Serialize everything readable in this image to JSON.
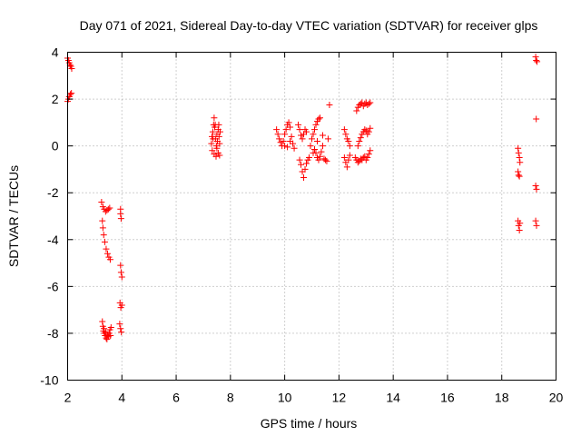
{
  "chart_data": {
    "type": "scatter",
    "title": "Day 071 of 2021, Sidereal Day-to-day VTEC variation (SDTVAR) for receiver glps",
    "xlabel": "GPS time / hours",
    "ylabel": "SDTVAR / TECUs",
    "xlim": [
      2,
      20
    ],
    "ylim": [
      -10,
      4
    ],
    "xticks": [
      2,
      4,
      6,
      8,
      10,
      12,
      14,
      16,
      18,
      20
    ],
    "yticks": [
      -10,
      -8,
      -6,
      -4,
      -2,
      0,
      2,
      4
    ],
    "xtick_labels": [
      "2",
      "4",
      "6",
      "8",
      "10",
      "12",
      "14",
      "16",
      "18",
      "20"
    ],
    "ytick_labels": [
      "-10",
      "-8",
      "-6",
      "-4",
      "-2",
      "0",
      "2",
      "4"
    ],
    "grid": true,
    "marker": "+",
    "marker_color": "#ff0000",
    "series": [
      {
        "name": "SDTVAR",
        "points": [
          [
            2.0,
            3.75
          ],
          [
            2.03,
            3.65
          ],
          [
            2.06,
            3.55
          ],
          [
            2.09,
            3.45
          ],
          [
            2.12,
            3.4
          ],
          [
            2.15,
            3.3
          ],
          [
            2.0,
            1.9
          ],
          [
            2.03,
            2.0
          ],
          [
            2.06,
            2.1
          ],
          [
            2.1,
            2.2
          ],
          [
            2.14,
            2.25
          ],
          [
            3.25,
            -2.4
          ],
          [
            3.3,
            -2.6
          ],
          [
            3.35,
            -2.7
          ],
          [
            3.4,
            -2.8
          ],
          [
            3.45,
            -2.75
          ],
          [
            3.5,
            -2.7
          ],
          [
            3.55,
            -2.65
          ],
          [
            3.28,
            -3.2
          ],
          [
            3.3,
            -3.5
          ],
          [
            3.33,
            -3.8
          ],
          [
            3.37,
            -4.1
          ],
          [
            3.42,
            -4.4
          ],
          [
            3.47,
            -4.6
          ],
          [
            3.52,
            -4.75
          ],
          [
            3.57,
            -4.85
          ],
          [
            3.28,
            -7.5
          ],
          [
            3.3,
            -7.7
          ],
          [
            3.32,
            -7.9
          ],
          [
            3.35,
            -8.0
          ],
          [
            3.38,
            -8.1
          ],
          [
            3.42,
            -8.2
          ],
          [
            3.45,
            -8.25
          ],
          [
            3.5,
            -8.15
          ],
          [
            3.53,
            -8.0
          ],
          [
            3.56,
            -7.85
          ],
          [
            3.6,
            -7.75
          ],
          [
            3.4,
            -7.95
          ],
          [
            3.47,
            -8.05
          ],
          [
            3.34,
            -7.8
          ],
          [
            3.58,
            -8.1
          ],
          [
            3.95,
            -2.7
          ],
          [
            3.95,
            -2.9
          ],
          [
            3.97,
            -3.1
          ],
          [
            3.95,
            -5.1
          ],
          [
            3.97,
            -5.4
          ],
          [
            4.0,
            -5.6
          ],
          [
            3.93,
            -6.7
          ],
          [
            3.96,
            -6.9
          ],
          [
            4.0,
            -6.8
          ],
          [
            3.92,
            -7.6
          ],
          [
            3.95,
            -7.8
          ],
          [
            3.98,
            -7.95
          ],
          [
            7.3,
            0.1
          ],
          [
            7.32,
            0.4
          ],
          [
            7.35,
            0.6
          ],
          [
            7.38,
            0.9
          ],
          [
            7.4,
            1.2
          ],
          [
            7.42,
            0.8
          ],
          [
            7.45,
            0.3
          ],
          [
            7.48,
            0.0
          ],
          [
            7.5,
            0.5
          ],
          [
            7.52,
            0.2
          ],
          [
            7.55,
            0.7
          ],
          [
            7.58,
            0.4
          ],
          [
            7.6,
            0.1
          ],
          [
            7.62,
            0.6
          ],
          [
            7.33,
            -0.2
          ],
          [
            7.4,
            -0.35
          ],
          [
            7.47,
            -0.45
          ],
          [
            7.55,
            -0.3
          ],
          [
            7.6,
            -0.4
          ],
          [
            7.36,
            0.3
          ],
          [
            7.44,
            0.9
          ],
          [
            7.5,
            -0.1
          ],
          [
            7.57,
            0.9
          ],
          [
            9.7,
            0.7
          ],
          [
            9.75,
            0.5
          ],
          [
            9.8,
            0.3
          ],
          [
            9.85,
            0.15
          ],
          [
            9.9,
            0.0
          ],
          [
            9.95,
            0.2
          ],
          [
            10.0,
            0.5
          ],
          [
            10.05,
            0.7
          ],
          [
            10.1,
            0.9
          ],
          [
            10.15,
            1.0
          ],
          [
            10.2,
            0.8
          ],
          [
            10.25,
            0.4
          ],
          [
            10.3,
            0.1
          ],
          [
            10.35,
            -0.1
          ],
          [
            10.0,
            0.0
          ],
          [
            10.1,
            -0.05
          ],
          [
            10.2,
            0.2
          ],
          [
            10.5,
            0.9
          ],
          [
            10.55,
            0.7
          ],
          [
            10.6,
            0.45
          ],
          [
            10.65,
            0.3
          ],
          [
            10.7,
            0.5
          ],
          [
            10.75,
            0.7
          ],
          [
            10.8,
            0.6
          ],
          [
            10.55,
            -0.6
          ],
          [
            10.6,
            -0.8
          ],
          [
            10.65,
            -1.1
          ],
          [
            10.7,
            -1.35
          ],
          [
            10.75,
            -1.0
          ],
          [
            10.8,
            -0.75
          ],
          [
            10.85,
            -0.6
          ],
          [
            10.9,
            -0.5
          ],
          [
            10.95,
            0.0
          ],
          [
            11.0,
            0.3
          ],
          [
            11.05,
            0.5
          ],
          [
            11.1,
            0.7
          ],
          [
            11.15,
            0.9
          ],
          [
            11.2,
            1.05
          ],
          [
            11.25,
            1.15
          ],
          [
            11.3,
            1.2
          ],
          [
            11.05,
            -0.3
          ],
          [
            11.1,
            -0.15
          ],
          [
            11.15,
            -0.3
          ],
          [
            11.2,
            -0.5
          ],
          [
            11.25,
            -0.6
          ],
          [
            11.3,
            -0.45
          ],
          [
            11.35,
            -0.25
          ],
          [
            11.4,
            0.0
          ],
          [
            11.45,
            -0.55
          ],
          [
            11.5,
            -0.6
          ],
          [
            11.55,
            -0.65
          ],
          [
            11.6,
            0.3
          ],
          [
            11.65,
            1.75
          ],
          [
            11.4,
            0.45
          ],
          [
            11.2,
            0.2
          ],
          [
            12.2,
            0.7
          ],
          [
            12.25,
            0.5
          ],
          [
            12.3,
            0.3
          ],
          [
            12.35,
            0.2
          ],
          [
            12.4,
            0.0
          ],
          [
            12.2,
            -0.5
          ],
          [
            12.25,
            -0.7
          ],
          [
            12.3,
            -0.9
          ],
          [
            12.35,
            -0.6
          ],
          [
            12.4,
            -0.4
          ],
          [
            12.65,
            1.5
          ],
          [
            12.7,
            1.65
          ],
          [
            12.75,
            1.75
          ],
          [
            12.8,
            1.8
          ],
          [
            12.85,
            1.85
          ],
          [
            12.9,
            1.7
          ],
          [
            12.95,
            1.8
          ],
          [
            13.0,
            1.85
          ],
          [
            13.05,
            1.75
          ],
          [
            13.1,
            1.8
          ],
          [
            13.15,
            1.85
          ],
          [
            12.7,
            0.0
          ],
          [
            12.75,
            0.2
          ],
          [
            12.8,
            0.35
          ],
          [
            12.85,
            0.5
          ],
          [
            12.9,
            0.6
          ],
          [
            12.95,
            0.7
          ],
          [
            13.0,
            0.65
          ],
          [
            13.05,
            0.5
          ],
          [
            13.1,
            0.6
          ],
          [
            13.15,
            0.75
          ],
          [
            12.6,
            -0.5
          ],
          [
            12.65,
            -0.6
          ],
          [
            12.7,
            -0.7
          ],
          [
            12.75,
            -0.65
          ],
          [
            12.8,
            -0.55
          ],
          [
            12.85,
            -0.6
          ],
          [
            12.9,
            -0.5
          ],
          [
            12.95,
            -0.45
          ],
          [
            13.0,
            -0.6
          ],
          [
            13.05,
            -0.5
          ],
          [
            13.1,
            -0.35
          ],
          [
            13.15,
            -0.2
          ],
          [
            18.6,
            -0.1
          ],
          [
            18.62,
            -0.3
          ],
          [
            18.65,
            -0.5
          ],
          [
            18.67,
            -0.7
          ],
          [
            18.6,
            -1.1
          ],
          [
            18.62,
            -1.25
          ],
          [
            18.65,
            -1.3
          ],
          [
            18.6,
            -3.2
          ],
          [
            18.62,
            -3.4
          ],
          [
            18.65,
            -3.6
          ],
          [
            18.67,
            -3.3
          ],
          [
            19.25,
            3.8
          ],
          [
            19.27,
            3.65
          ],
          [
            19.3,
            3.6
          ],
          [
            19.27,
            1.15
          ],
          [
            19.25,
            -1.7
          ],
          [
            19.28,
            -1.85
          ],
          [
            19.25,
            -3.2
          ],
          [
            19.28,
            -3.4
          ]
        ]
      }
    ]
  }
}
